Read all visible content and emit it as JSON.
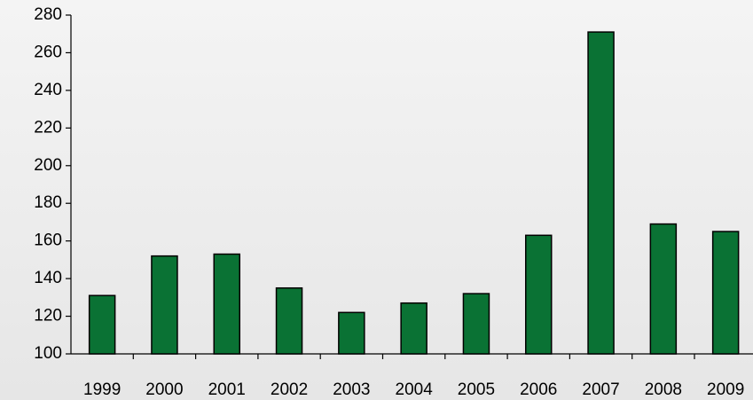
{
  "chart_data": {
    "type": "bar",
    "categories": [
      "1999",
      "2000",
      "2001",
      "2002",
      "2003",
      "2004",
      "2005",
      "2006",
      "2007",
      "2008",
      "2009"
    ],
    "values": [
      131,
      152,
      153,
      135,
      122,
      127,
      132,
      163,
      271,
      169,
      165
    ],
    "color": "#0a7234",
    "ylim": [
      100,
      280
    ],
    "yticks": [
      100,
      120,
      140,
      160,
      180,
      200,
      220,
      240,
      260,
      280
    ],
    "grid": false
  }
}
